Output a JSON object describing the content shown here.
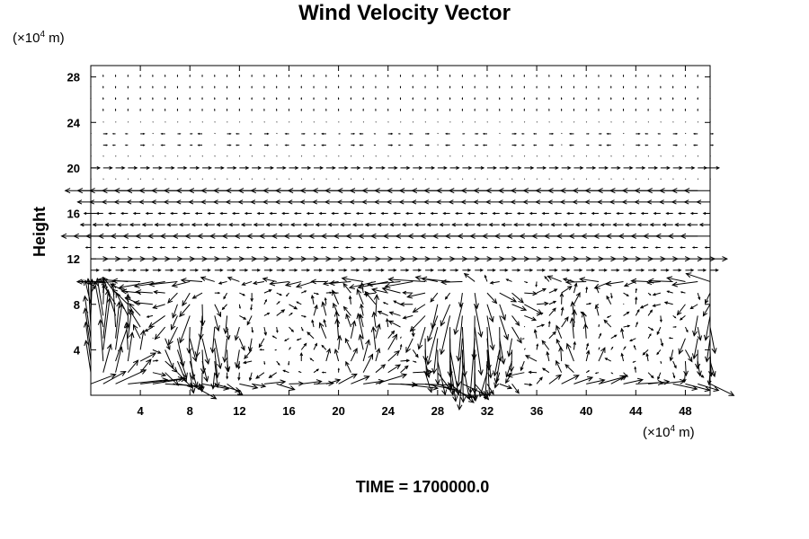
{
  "chart_data": {
    "type": "vector_field",
    "title": "Wind Velocity Vector",
    "ylabel": "Height",
    "x_unit_base": "(×10",
    "x_unit_exp": "4",
    "x_unit_tail": " m)",
    "y_unit_base": "(×10",
    "y_unit_exp": "4",
    "y_unit_tail": " m)",
    "xlim": [
      0,
      50
    ],
    "ylim": [
      0,
      29
    ],
    "xticks": [
      4,
      8,
      12,
      16,
      20,
      24,
      28,
      32,
      36,
      40,
      44,
      48
    ],
    "yticks": [
      4,
      8,
      12,
      16,
      20,
      24,
      28
    ],
    "grid": false,
    "color": "#000000",
    "field_description": "Upper rows weak/still; strong westward flow near heights 14 and 18; eastward flow near 12 and 20; vortical cells in lower region (heights 0–10)."
  },
  "footer": {
    "time_label": "TIME = 1700000.0"
  }
}
